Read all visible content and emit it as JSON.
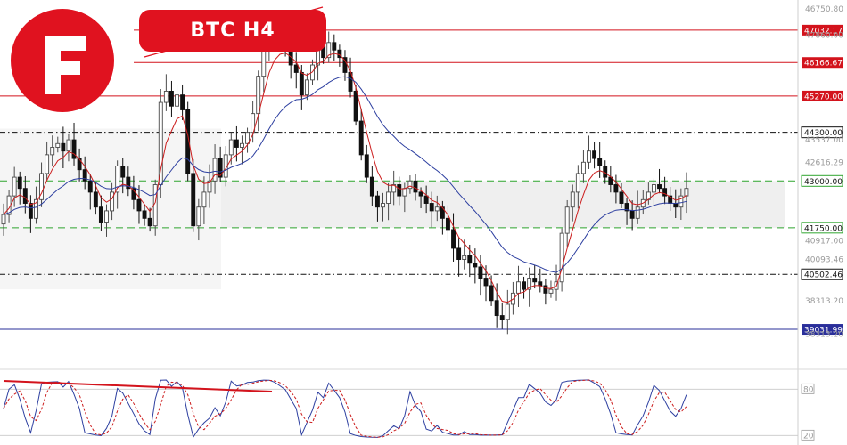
{
  "title": "BTC  H4",
  "colors": {
    "bull": "#4a4a4a",
    "bear": "#111111",
    "ma_fast": "#cc1d1d",
    "ma_slow": "#2d3fa0",
    "level_red": "#d3131c",
    "level_green": "#2fa52f",
    "level_blue": "#2a2f9a",
    "level_black": "#111111",
    "logo": "#e0121f"
  },
  "chart_data": {
    "type": "candlestick",
    "ylim": [
      38200,
      47600
    ],
    "price_axis_ticks": [
      {
        "value": 47600,
        "label": "46750.80"
      },
      {
        "value": 46900,
        "label": "47860.00"
      },
      {
        "value": 44100,
        "label": "43537.00"
      },
      {
        "value": 43500,
        "label": "42616.29"
      },
      {
        "value": 41400,
        "label": "40917.00"
      },
      {
        "value": 40900,
        "label": "40093.46"
      },
      {
        "value": 39800,
        "label": "38313.20"
      },
      {
        "value": 38900,
        "label": "38313.20"
      }
    ],
    "levels": [
      {
        "value": 47032.17,
        "label": "47032.17",
        "style": "solid",
        "color": "level_red"
      },
      {
        "value": 46166.67,
        "label": "46166.67",
        "style": "solid",
        "color": "level_red"
      },
      {
        "value": 45270.0,
        "label": "45270.00",
        "style": "solid",
        "color": "level_red"
      },
      {
        "value": 44300.0,
        "label": "44300.00",
        "style": "dashdot",
        "color": "level_black"
      },
      {
        "value": 43000.0,
        "label": "43000.00",
        "style": "dashed",
        "color": "level_green"
      },
      {
        "value": 41750.0,
        "label": "41750.00",
        "style": "dashed",
        "color": "level_green"
      },
      {
        "value": 40502.46,
        "label": "40502.46",
        "style": "dashdot",
        "color": "level_black"
      },
      {
        "value": 39031.99,
        "label": "39031.99",
        "style": "solid",
        "color": "level_blue"
      }
    ],
    "zones": [
      {
        "from": 41750,
        "to": 43000
      },
      {
        "from": 40100,
        "to": 44400
      }
    ],
    "close": [
      42100,
      42600,
      43100,
      42800,
      42400,
      42000,
      42500,
      43200,
      43700,
      43900,
      44000,
      43800,
      44100,
      43600,
      43300,
      43000,
      42700,
      42300,
      41900,
      42200,
      42700,
      43400,
      43100,
      42800,
      42500,
      42200,
      42000,
      41800,
      42900,
      45100,
      45400,
      45000,
      45300,
      44900,
      43200,
      41800,
      42300,
      42700,
      43000,
      43600,
      43100,
      43700,
      44100,
      43900,
      44000,
      44300,
      44800,
      45800,
      46500,
      47000,
      46900,
      46700,
      46500,
      46100,
      45900,
      45300,
      45700,
      46100,
      46600,
      46300,
      46700,
      46500,
      46300,
      45900,
      45400,
      44600,
      43700,
      43100,
      42600,
      42300,
      42400,
      42700,
      42900,
      42600,
      42800,
      43000,
      42700,
      42600,
      42400,
      42200,
      42300,
      42000,
      41700,
      41200,
      40900,
      41000,
      40800,
      40700,
      40400,
      40200,
      39800,
      39400,
      39300,
      39700,
      40000,
      40300,
      40100,
      40400,
      40300,
      40200,
      40000,
      40100,
      40300,
      41600,
      42300,
      42700,
      43200,
      43500,
      43800,
      43600,
      43400,
      43100,
      42900,
      42700,
      42400,
      42200,
      42000,
      42300,
      42500,
      42700,
      42900,
      42800,
      42600,
      42400,
      42300,
      42600,
      42800
    ],
    "stochastic_levels": [
      {
        "value": 80,
        "label": "80"
      },
      {
        "value": 20,
        "label": "20"
      }
    ]
  }
}
